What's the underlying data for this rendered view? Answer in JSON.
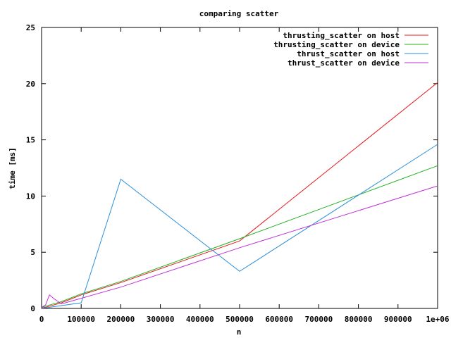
{
  "chart_data": {
    "type": "line",
    "title": "comparing scatter",
    "xlabel": "n",
    "ylabel": "time [ms]",
    "xlim": [
      0,
      1000000
    ],
    "ylim": [
      0,
      25
    ],
    "x_ticks": [
      0,
      100000,
      200000,
      300000,
      400000,
      500000,
      600000,
      700000,
      800000,
      900000,
      1000000
    ],
    "x_tick_labels": [
      "0",
      "100000",
      "200000",
      "300000",
      "400000",
      "500000",
      "600000",
      "700000",
      "800000",
      "900000",
      "1e+06"
    ],
    "y_ticks": [
      0,
      5,
      10,
      15,
      20,
      25
    ],
    "y_tick_labels": [
      "0",
      "5",
      "10",
      "15",
      "20",
      "25"
    ],
    "grid": false,
    "legend_position": "top-right",
    "series": [
      {
        "name": "thrusting_scatter on host",
        "color": "#e41a1c",
        "x": [
          0,
          10000,
          20000,
          50000,
          100000,
          200000,
          500000,
          1000000
        ],
        "y": [
          0.05,
          0.1,
          0.2,
          0.5,
          1.2,
          2.3,
          6.0,
          20.1
        ]
      },
      {
        "name": "thrusting_scatter on device",
        "color": "#22b022",
        "x": [
          0,
          10000,
          20000,
          50000,
          100000,
          200000,
          500000,
          1000000
        ],
        "y": [
          0.1,
          0.2,
          0.3,
          0.6,
          1.3,
          2.4,
          6.2,
          12.7
        ]
      },
      {
        "name": "thrust_scatter on host",
        "color": "#2b8fd8",
        "x": [
          0,
          10000,
          20000,
          50000,
          100000,
          200000,
          500000,
          1000000
        ],
        "y": [
          0.02,
          0.05,
          0.1,
          0.25,
          0.5,
          11.5,
          3.3,
          14.6
        ]
      },
      {
        "name": "thrust_scatter on device",
        "color": "#c030d8",
        "x": [
          0,
          10000,
          20000,
          30000,
          50000,
          100000,
          200000,
          500000,
          1000000
        ],
        "y": [
          0.1,
          0.3,
          1.2,
          0.9,
          0.4,
          0.9,
          1.9,
          5.4,
          10.9
        ]
      }
    ]
  }
}
